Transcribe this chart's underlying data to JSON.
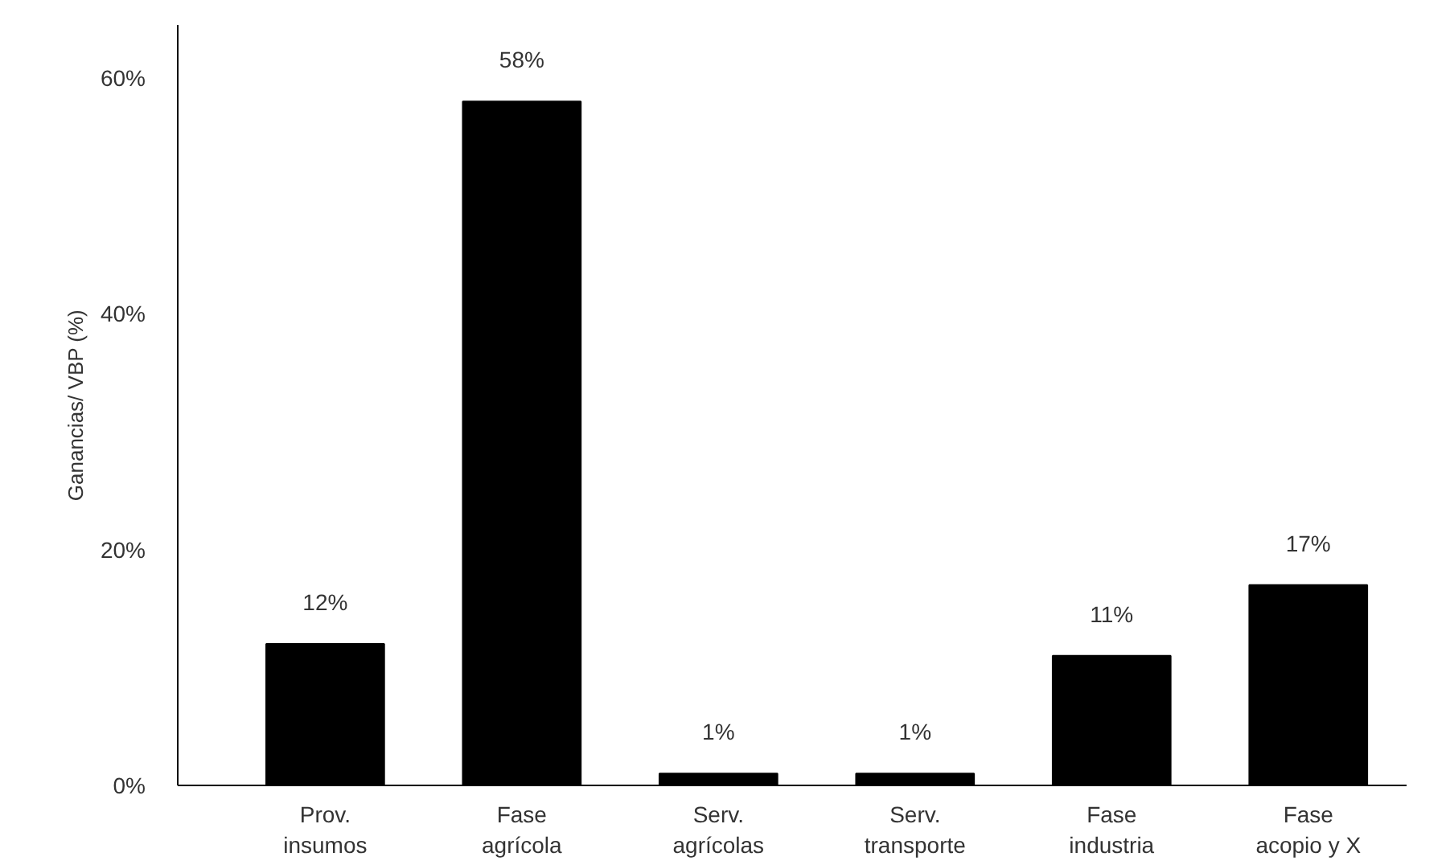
{
  "chart_data": {
    "type": "bar",
    "ylabel": "Ganancias/ VBP (%)",
    "categories": [
      "Prov.\ninsumos",
      "Fase\nagrícola",
      "Serv.\nagrícolas",
      "Serv.\ntransporte",
      "Fase\nindustria",
      "Fase\nacopio y X"
    ],
    "values": [
      12,
      58,
      1,
      1,
      11,
      17
    ],
    "value_labels": [
      "12%",
      "58%",
      "1%",
      "1%",
      "11%",
      "17%"
    ],
    "color": "#000000",
    "ylim": [
      0,
      64.5
    ],
    "yticks": [
      {
        "value": 0,
        "label": "0%"
      },
      {
        "value": 20,
        "label": "20%"
      },
      {
        "value": 40,
        "label": "40%"
      },
      {
        "value": 60,
        "label": "60%"
      }
    ],
    "grid": false
  }
}
